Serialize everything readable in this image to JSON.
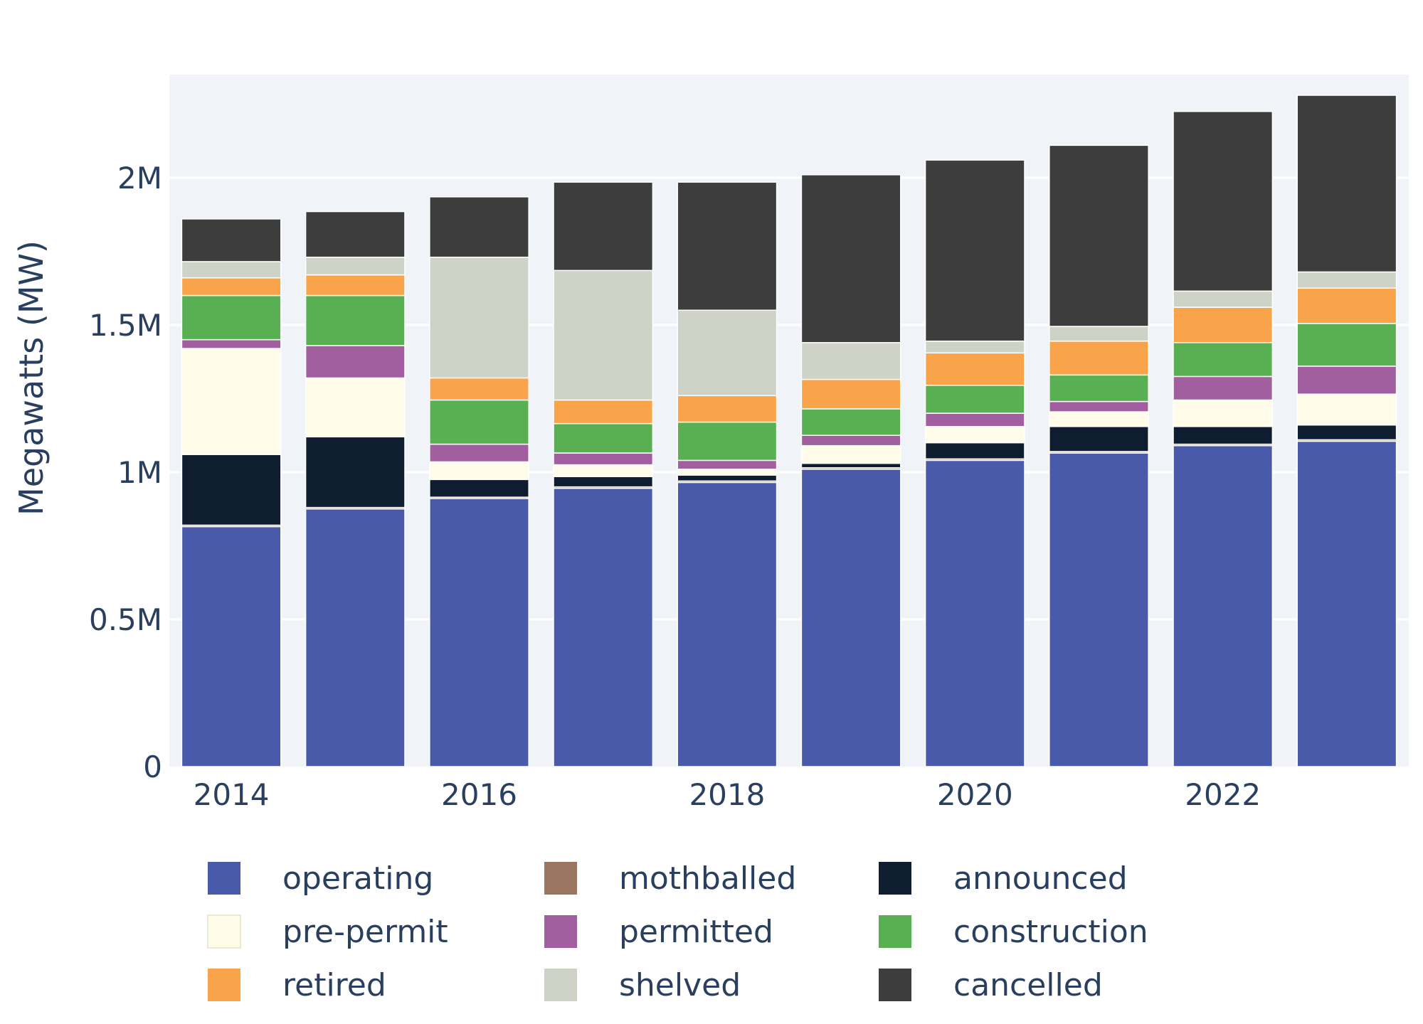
{
  "chart_data": {
    "type": "bar",
    "stacked": true,
    "title": "",
    "xlabel": "",
    "ylabel": "Megawatts (MW)",
    "ylim": [
      0,
      2350000
    ],
    "y_ticks": [
      {
        "value": 0,
        "label": "0"
      },
      {
        "value": 500000,
        "label": "0.5M"
      },
      {
        "value": 1000000,
        "label": "1M"
      },
      {
        "value": 1500000,
        "label": "1.5M"
      },
      {
        "value": 2000000,
        "label": "2M"
      }
    ],
    "x_ticks": [
      {
        "value": 2014,
        "label": "2014"
      },
      {
        "value": 2016,
        "label": "2016"
      },
      {
        "value": 2018,
        "label": "2018"
      },
      {
        "value": 2020,
        "label": "2020"
      },
      {
        "value": 2022,
        "label": "2022"
      }
    ],
    "categories": [
      2014,
      2015,
      2016,
      2017,
      2018,
      2019,
      2020,
      2021,
      2022,
      2023
    ],
    "grid": true,
    "plot_background": "#f0f4f9",
    "legend_position": "bottom",
    "series": [
      {
        "name": "operating",
        "color": "#4a5aab",
        "values": [
          815000,
          875000,
          910000,
          945000,
          965000,
          1010000,
          1040000,
          1065000,
          1090000,
          1105000
        ]
      },
      {
        "name": "mothballed",
        "color": "#9a7560",
        "values": [
          5000,
          5000,
          5000,
          5000,
          5000,
          5000,
          5000,
          5000,
          5000,
          5000
        ]
      },
      {
        "name": "announced",
        "color": "#0e1e30",
        "values": [
          240000,
          240000,
          60000,
          35000,
          20000,
          15000,
          55000,
          85000,
          60000,
          50000
        ]
      },
      {
        "name": "pre-permit",
        "color": "#fffdea",
        "values": [
          360000,
          200000,
          60000,
          40000,
          20000,
          60000,
          55000,
          50000,
          90000,
          105000
        ]
      },
      {
        "name": "permitted",
        "color": "#a15fa0",
        "values": [
          30000,
          110000,
          60000,
          40000,
          30000,
          35000,
          45000,
          35000,
          80000,
          95000
        ]
      },
      {
        "name": "construction",
        "color": "#58b052",
        "values": [
          150000,
          170000,
          150000,
          100000,
          130000,
          90000,
          95000,
          90000,
          115000,
          145000
        ]
      },
      {
        "name": "retired",
        "color": "#f9a44a",
        "values": [
          60000,
          70000,
          75000,
          80000,
          90000,
          100000,
          110000,
          115000,
          120000,
          120000
        ]
      },
      {
        "name": "shelved",
        "color": "#cfd2c6",
        "values": [
          55000,
          60000,
          410000,
          440000,
          290000,
          125000,
          40000,
          50000,
          55000,
          55000
        ]
      },
      {
        "name": "cancelled",
        "color": "#3d3d3d",
        "values": [
          145000,
          155000,
          205000,
          300000,
          435000,
          570000,
          615000,
          615000,
          610000,
          600000
        ]
      }
    ],
    "legend_order": [
      "operating",
      "mothballed",
      "announced",
      "pre-permit",
      "permitted",
      "construction",
      "retired",
      "shelved",
      "cancelled"
    ]
  }
}
